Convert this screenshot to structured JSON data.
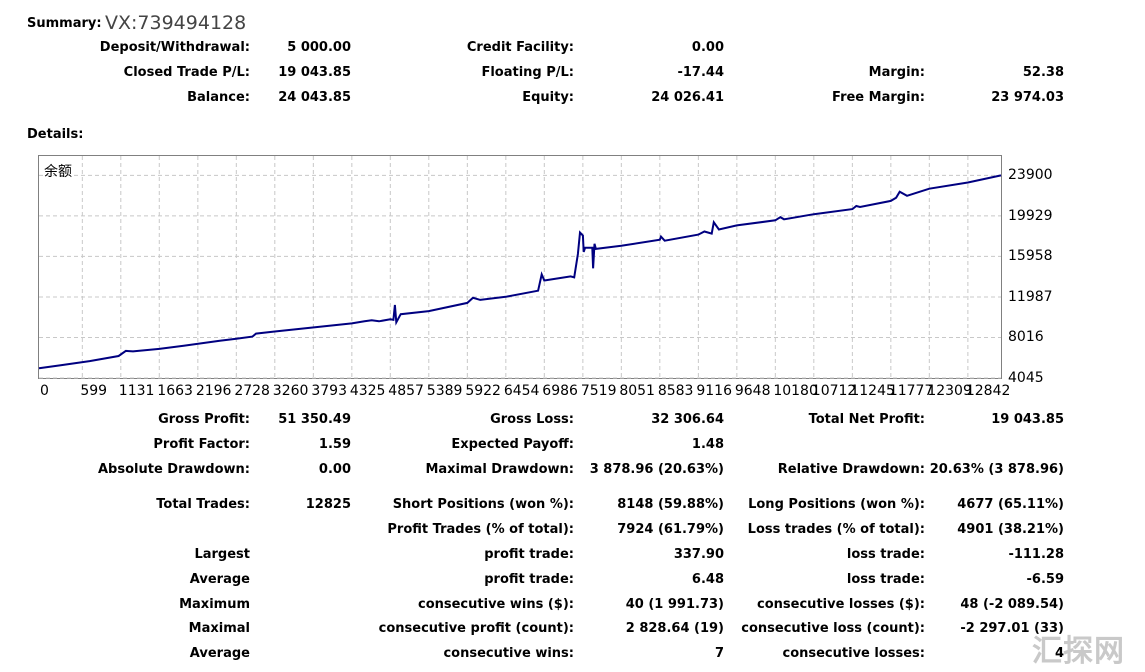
{
  "summary": {
    "label": "Summary:",
    "account": "VX:739494128",
    "rows": [
      [
        {
          "label": "Deposit/Withdrawal:",
          "value": "5 000.00"
        },
        {
          "label": "Credit Facility:",
          "value": "0.00"
        },
        {
          "label": "",
          "value": ""
        }
      ],
      [
        {
          "label": "Closed Trade P/L:",
          "value": "19 043.85"
        },
        {
          "label": "Floating P/L:",
          "value": "-17.44"
        },
        {
          "label": "Margin:",
          "value": "52.38"
        }
      ],
      [
        {
          "label": "Balance:",
          "value": "24 043.85"
        },
        {
          "label": "Equity:",
          "value": "24 026.41"
        },
        {
          "label": "Free Margin:",
          "value": "23 974.03"
        }
      ]
    ]
  },
  "details": {
    "label": "Details:"
  },
  "chart_data": {
    "type": "line",
    "title": "",
    "series": [
      {
        "name": "余额",
        "color": "#000080"
      }
    ],
    "ylim": [
      4045,
      25800
    ],
    "xlim": [
      0,
      13300
    ],
    "yticks": [
      "23900",
      "19929",
      "15958",
      "11987",
      "8016",
      "4045"
    ],
    "ytick_values": [
      23900,
      19929,
      15958,
      11987,
      8016,
      4045
    ],
    "xticks": [
      "0",
      "599",
      "1131",
      "1663",
      "2196",
      "2728",
      "3260",
      "3793",
      "4325",
      "4857",
      "5389",
      "5922",
      "6454",
      "6986",
      "7519",
      "8051",
      "8583",
      "9116",
      "9648",
      "10180",
      "10712",
      "11245",
      "11777",
      "12309",
      "12842"
    ],
    "xtick_values": [
      0,
      599,
      1131,
      1663,
      2196,
      2728,
      3260,
      3793,
      4325,
      4857,
      5389,
      5922,
      6454,
      6986,
      7519,
      8051,
      8583,
      9116,
      9648,
      10180,
      10712,
      11245,
      11777,
      12309,
      12842
    ],
    "grid": true,
    "points": [
      [
        0,
        5000
      ],
      [
        300,
        5300
      ],
      [
        700,
        5700
      ],
      [
        1100,
        6200
      ],
      [
        1200,
        6700
      ],
      [
        1300,
        6650
      ],
      [
        1663,
        6900
      ],
      [
        2000,
        7200
      ],
      [
        2500,
        7700
      ],
      [
        2728,
        7900
      ],
      [
        2950,
        8100
      ],
      [
        3000,
        8400
      ],
      [
        3260,
        8600
      ],
      [
        3800,
        9000
      ],
      [
        4325,
        9400
      ],
      [
        4500,
        9600
      ],
      [
        4600,
        9700
      ],
      [
        4700,
        9600
      ],
      [
        4857,
        9800
      ],
      [
        4900,
        9750
      ],
      [
        4920,
        11200
      ],
      [
        4940,
        9500
      ],
      [
        5000,
        10300
      ],
      [
        5389,
        10600
      ],
      [
        5922,
        11400
      ],
      [
        6000,
        11900
      ],
      [
        6100,
        11700
      ],
      [
        6454,
        12000
      ],
      [
        6900,
        12600
      ],
      [
        6950,
        14200
      ],
      [
        6986,
        13600
      ],
      [
        7350,
        14000
      ],
      [
        7400,
        13900
      ],
      [
        7450,
        16200
      ],
      [
        7480,
        18300
      ],
      [
        7519,
        18000
      ],
      [
        7530,
        16400
      ],
      [
        7550,
        16800
      ],
      [
        7650,
        16800
      ],
      [
        7660,
        14800
      ],
      [
        7680,
        17200
      ],
      [
        7700,
        16700
      ],
      [
        8051,
        17000
      ],
      [
        8583,
        17600
      ],
      [
        8600,
        17900
      ],
      [
        8650,
        17500
      ],
      [
        9116,
        18100
      ],
      [
        9200,
        18400
      ],
      [
        9300,
        18200
      ],
      [
        9330,
        19300
      ],
      [
        9400,
        18600
      ],
      [
        9648,
        19000
      ],
      [
        10180,
        19500
      ],
      [
        10250,
        19800
      ],
      [
        10300,
        19600
      ],
      [
        10712,
        20100
      ],
      [
        11245,
        20600
      ],
      [
        11300,
        20900
      ],
      [
        11350,
        20800
      ],
      [
        11777,
        21400
      ],
      [
        11850,
        21700
      ],
      [
        11900,
        22300
      ],
      [
        12000,
        21900
      ],
      [
        12309,
        22600
      ],
      [
        12842,
        23200
      ],
      [
        13300,
        23900
      ]
    ]
  },
  "stats": {
    "rows": [
      [
        {
          "label": "Gross Profit:",
          "value": "51 350.49"
        },
        {
          "label": "Gross Loss:",
          "value": "32 306.64"
        },
        {
          "label": "Total Net Profit:",
          "value": "19 043.85"
        }
      ],
      [
        {
          "label": "Profit Factor:",
          "value": "1.59"
        },
        {
          "label": "Expected Payoff:",
          "value": "1.48"
        },
        {
          "label": "",
          "value": ""
        }
      ],
      [
        {
          "label": "Absolute Drawdown:",
          "value": "0.00"
        },
        {
          "label": "Maximal Drawdown:",
          "value": "3 878.96 (20.63%)"
        },
        {
          "label": "Relative Drawdown:",
          "value": "20.63% (3 878.96)"
        }
      ],
      [
        {
          "label": "Total Trades:",
          "value": "12825"
        },
        {
          "label": "Short Positions (won %):",
          "value": "8148 (59.88%)"
        },
        {
          "label": "Long Positions (won %):",
          "value": "4677 (65.11%)"
        }
      ],
      [
        {
          "label": "",
          "value": ""
        },
        {
          "label": "Profit Trades (% of total):",
          "value": "7924 (61.79%)"
        },
        {
          "label": "Loss trades (% of total):",
          "value": "4901 (38.21%)"
        }
      ],
      [
        {
          "label": "Largest",
          "value": ""
        },
        {
          "label": "profit trade:",
          "value": "337.90"
        },
        {
          "label": "loss trade:",
          "value": "-111.28"
        }
      ],
      [
        {
          "label": "Average",
          "value": ""
        },
        {
          "label": "profit trade:",
          "value": "6.48"
        },
        {
          "label": "loss trade:",
          "value": "-6.59"
        }
      ],
      [
        {
          "label": "Maximum",
          "value": ""
        },
        {
          "label": "consecutive wins ($):",
          "value": "40 (1 991.73)"
        },
        {
          "label": "consecutive losses ($):",
          "value": "48 (-2 089.54)"
        }
      ],
      [
        {
          "label": "Maximal",
          "value": ""
        },
        {
          "label": "consecutive profit (count):",
          "value": "2 828.64 (19)"
        },
        {
          "label": "consecutive loss (count):",
          "value": "-2 297.01 (33)"
        }
      ],
      [
        {
          "label": "Average",
          "value": ""
        },
        {
          "label": "consecutive wins:",
          "value": "7"
        },
        {
          "label": "consecutive losses:",
          "value": "4"
        }
      ]
    ]
  },
  "watermark": "汇探网"
}
